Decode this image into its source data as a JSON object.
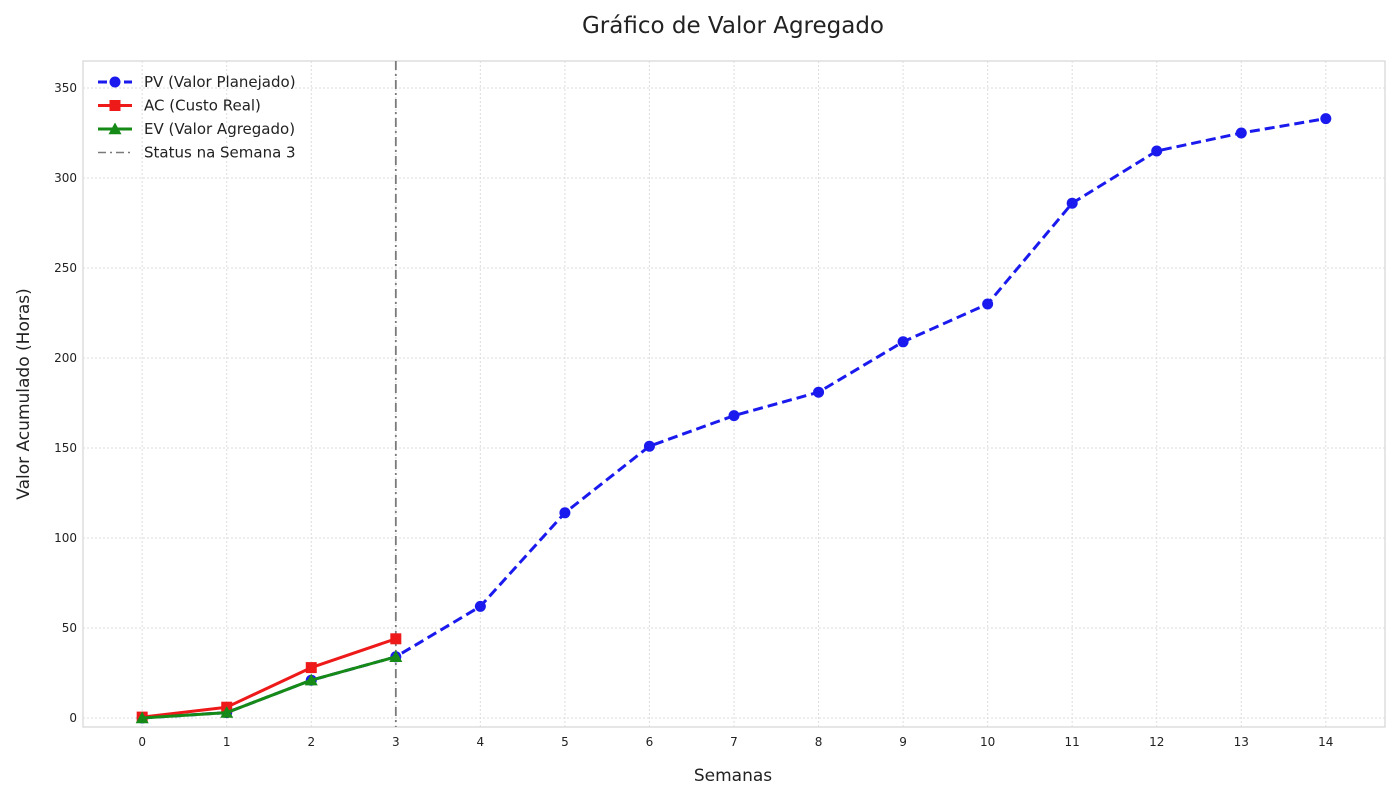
{
  "chart_data": {
    "type": "line",
    "title": "Gráfico de Valor Agregado",
    "xlabel": "Semanas",
    "ylabel": "Valor Acumulado (Horas)",
    "xlim": [
      -0.7,
      14.7
    ],
    "ylim": [
      -5,
      365
    ],
    "x_ticks": [
      0,
      1,
      2,
      3,
      4,
      5,
      6,
      7,
      8,
      9,
      10,
      11,
      12,
      13,
      14
    ],
    "y_ticks": [
      0,
      50,
      100,
      150,
      200,
      250,
      300,
      350
    ],
    "grid": true,
    "legend_position": "top-left",
    "series": [
      {
        "name": "PV (Valor Planejado)",
        "color": "#1a1aee",
        "marker": "circle",
        "line_style": "dashed",
        "x": [
          0,
          1,
          2,
          3,
          4,
          5,
          6,
          7,
          8,
          9,
          10,
          11,
          12,
          13,
          14
        ],
        "y": [
          0,
          3,
          21,
          34,
          62,
          114,
          151,
          168,
          181,
          209,
          230,
          286,
          315,
          325,
          333
        ]
      },
      {
        "name": "AC (Custo Real)",
        "color": "#ee1a1a",
        "marker": "square",
        "line_style": "solid",
        "x": [
          0,
          1,
          2,
          3
        ],
        "y": [
          0.5,
          6,
          28,
          44
        ]
      },
      {
        "name": "EV (Valor Agregado)",
        "color": "#168a16",
        "marker": "triangle",
        "line_style": "solid",
        "x": [
          0,
          1,
          2,
          3
        ],
        "y": [
          0,
          3,
          21,
          34
        ]
      }
    ],
    "vline": {
      "x": 3,
      "label": "Status na Semana 3",
      "color": "#7a7a7a",
      "line_style": "dashdot"
    }
  }
}
